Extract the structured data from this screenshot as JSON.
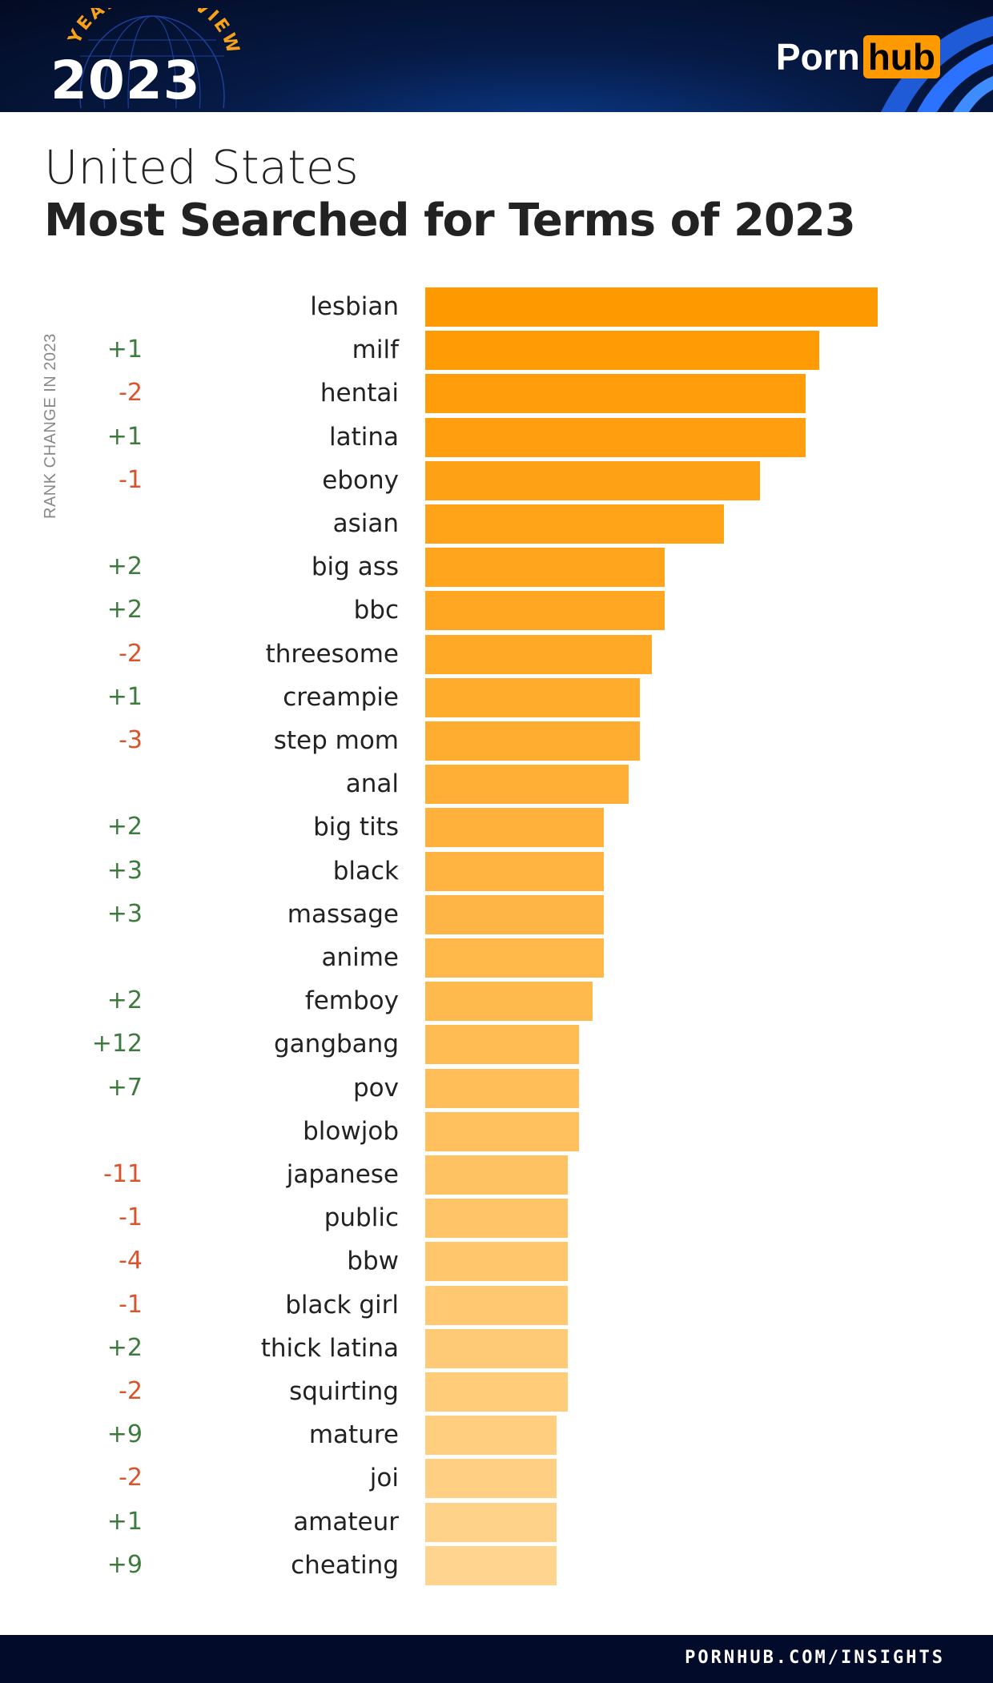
{
  "header": {
    "badge_top": "YEAR IN REVIEW",
    "badge_year": "2023",
    "brand_left": "Porn",
    "brand_right": "hub"
  },
  "title": {
    "line1": "United States",
    "line2": "Most Searched for Terms of 2023"
  },
  "footer": {
    "url": "PORNHUB.COM/INSIGHTS"
  },
  "colors": {
    "bar_start": "#FF9900",
    "bar_end": "#FFD48E",
    "up": "#3d7a3d",
    "down": "#d9542b",
    "header_bg": "#061a45"
  },
  "chart_data": {
    "type": "bar",
    "orientation": "horizontal",
    "title": "Most Searched for Terms of 2023",
    "side_label": "RANK CHANGE IN 2023",
    "value_unit": "relative popularity (lesbian = 100)",
    "categories": [
      "lesbian",
      "milf",
      "hentai",
      "latina",
      "ebony",
      "asian",
      "big ass",
      "bbc",
      "threesome",
      "creampie",
      "step mom",
      "anal",
      "big tits",
      "black",
      "massage",
      "anime",
      "femboy",
      "gangbang",
      "pov",
      "blowjob",
      "japanese",
      "public",
      "bbw",
      "black girl",
      "thick latina",
      "squirting",
      "mature",
      "joi",
      "amateur",
      "cheating"
    ],
    "values": [
      100,
      87,
      84,
      84,
      74,
      66,
      53,
      53,
      50,
      47.5,
      47.5,
      45,
      39.5,
      39.5,
      39.5,
      39.5,
      37,
      34,
      34,
      34,
      31.5,
      31.5,
      31.5,
      31.5,
      31.5,
      31.5,
      29,
      29,
      29,
      29
    ],
    "rank_change": [
      "",
      "+1",
      "-2",
      "+1",
      "-1",
      "",
      "+2",
      "+2",
      "-2",
      "+1",
      "-3",
      "",
      "+2",
      "+3",
      "+3",
      "",
      "+2",
      "+12",
      "+7",
      "",
      "-11",
      "-1",
      "-4",
      "-1",
      "+2",
      "-2",
      "+9",
      "-2",
      "+1",
      "+9"
    ]
  }
}
